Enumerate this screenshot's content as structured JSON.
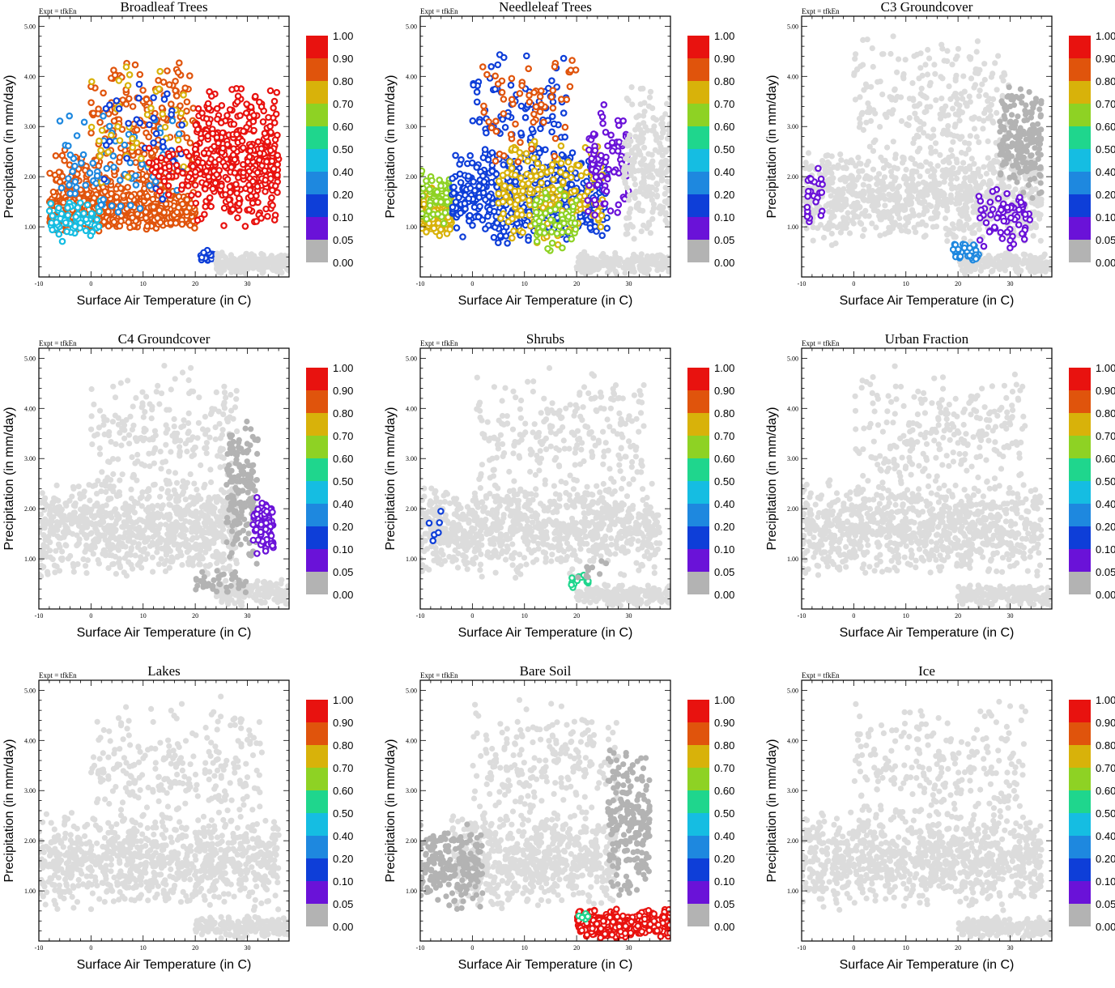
{
  "figure": {
    "expt_label": "Expt = tfkEn",
    "xlabel": "Surface Air Temperature (in C)",
    "ylabel": "Precipitation (in mm/day)",
    "xlim": [
      -10,
      38
    ],
    "ylim": [
      0,
      5.2
    ],
    "x_ticks": [
      "-10",
      "0",
      "10",
      "20",
      "30"
    ],
    "y_ticks": [
      "1.00",
      "2.00",
      "3.00",
      "4.00",
      "5.00"
    ],
    "colorbar": {
      "labels": [
        "1.00",
        "0.90",
        "0.80",
        "0.70",
        "0.60",
        "0.50",
        "0.40",
        "0.20",
        "0.10",
        "0.05",
        "0.00"
      ],
      "colors": [
        "#e8120f",
        "#e0540c",
        "#d8b20a",
        "#8ed224",
        "#1fd68d",
        "#15bde2",
        "#1e88df",
        "#0e3ed8",
        "#6a12d8",
        "#b3b3b3"
      ]
    },
    "background_point_color": "#dcdcdc"
  },
  "chart_data": [
    {
      "type": "scatter",
      "title": "Broadleaf Trees",
      "xlim": [
        -10,
        38
      ],
      "ylim": [
        0,
        5.2
      ],
      "clusters": [
        {
          "x_range": [
            -8,
            20
          ],
          "y_range": [
            0.9,
            1.7
          ],
          "color": "#e0540c",
          "count": 520
        },
        {
          "x_range": [
            -8,
            20
          ],
          "y_range": [
            1.0,
            2.6
          ],
          "color": "#e0540c",
          "count": 240
        },
        {
          "x_range": [
            0,
            20
          ],
          "y_range": [
            2.0,
            4.5
          ],
          "color": "#e0540c",
          "count": 150
        },
        {
          "x_range": [
            -8,
            2
          ],
          "y_range": [
            0.7,
            1.6
          ],
          "color": "#15bde2",
          "count": 70
        },
        {
          "x_range": [
            -6,
            17
          ],
          "y_range": [
            1.0,
            3.4
          ],
          "color": "#1e88df",
          "count": 80
        },
        {
          "x_range": [
            0,
            18
          ],
          "y_range": [
            1.2,
            4.7
          ],
          "color": "#d8b20a",
          "count": 40
        },
        {
          "x_range": [
            2,
            18
          ],
          "y_range": [
            1.3,
            4.2
          ],
          "color": "#0e3ed8",
          "count": 35
        },
        {
          "x_range": [
            20,
            36
          ],
          "y_range": [
            0.9,
            3.9
          ],
          "color": "#e8120f",
          "count": 420
        },
        {
          "x_range": [
            11,
            20
          ],
          "y_range": [
            1.5,
            2.8
          ],
          "color": "#e8120f",
          "count": 50
        },
        {
          "x_range": [
            21,
            24
          ],
          "y_range": [
            0.3,
            0.6
          ],
          "color": "#0e3ed8",
          "count": 25
        },
        {
          "x_range": [
            24,
            38
          ],
          "y_range": [
            0.05,
            0.5
          ],
          "color": "#dcdcdc",
          "count": 220
        }
      ]
    },
    {
      "type": "scatter",
      "title": "Needleleaf Trees",
      "xlim": [
        -10,
        38
      ],
      "ylim": [
        0,
        5.2
      ],
      "clusters": [
        {
          "x_range": [
            -10,
            -4
          ],
          "y_range": [
            0.8,
            1.8
          ],
          "color": "#d8b20a",
          "count": 240
        },
        {
          "x_range": [
            -10,
            -4
          ],
          "y_range": [
            1.0,
            2.2
          ],
          "color": "#8ed224",
          "count": 60
        },
        {
          "x_range": [
            -4,
            26
          ],
          "y_range": [
            0.6,
            2.6
          ],
          "color": "#0e3ed8",
          "count": 480
        },
        {
          "x_range": [
            0,
            18
          ],
          "y_range": [
            2.0,
            4.6
          ],
          "color": "#0e3ed8",
          "count": 90
        },
        {
          "x_range": [
            5,
            25
          ],
          "y_range": [
            0.6,
            2.8
          ],
          "color": "#d8b20a",
          "count": 200
        },
        {
          "x_range": [
            12,
            20
          ],
          "y_range": [
            0.5,
            1.8
          ],
          "color": "#8ed224",
          "count": 60
        },
        {
          "x_range": [
            2,
            20
          ],
          "y_range": [
            2.0,
            4.6
          ],
          "color": "#e0540c",
          "count": 60
        },
        {
          "x_range": [
            22,
            30
          ],
          "y_range": [
            1.0,
            3.5
          ],
          "color": "#6a12d8",
          "count": 90
        },
        {
          "x_range": [
            29,
            38
          ],
          "y_range": [
            0.5,
            3.9
          ],
          "color": "#dcdcdc",
          "count": 220
        },
        {
          "x_range": [
            20,
            38
          ],
          "y_range": [
            0.05,
            0.5
          ],
          "color": "#dcdcdc",
          "count": 220
        }
      ]
    },
    {
      "type": "scatter",
      "title": "C3 Groundcover",
      "xlim": [
        -10,
        38
      ],
      "ylim": [
        0,
        5.2
      ],
      "clusters": [
        {
          "x_range": [
            -10,
            36
          ],
          "y_range": [
            0.6,
            2.6
          ],
          "color": "#dcdcdc",
          "count": 900
        },
        {
          "x_range": [
            0,
            30
          ],
          "y_range": [
            2.0,
            4.9
          ],
          "color": "#dcdcdc",
          "count": 260
        },
        {
          "x_range": [
            28,
            36
          ],
          "y_range": [
            1.5,
            3.9
          ],
          "color": "#b3b3b3",
          "count": 200
        },
        {
          "x_range": [
            20,
            38
          ],
          "y_range": [
            0.05,
            0.5
          ],
          "color": "#dcdcdc",
          "count": 200
        },
        {
          "x_range": [
            -9,
            -6
          ],
          "y_range": [
            1.0,
            2.4
          ],
          "color": "#6a12d8",
          "count": 25
        },
        {
          "x_range": [
            24,
            34
          ],
          "y_range": [
            0.5,
            1.8
          ],
          "color": "#6a12d8",
          "count": 70
        },
        {
          "x_range": [
            19,
            24
          ],
          "y_range": [
            0.3,
            0.7
          ],
          "color": "#1e88df",
          "count": 30
        }
      ]
    },
    {
      "type": "scatter",
      "title": "C4 Groundcover",
      "xlim": [
        -10,
        38
      ],
      "ylim": [
        0,
        5.2
      ],
      "clusters": [
        {
          "x_range": [
            -10,
            28
          ],
          "y_range": [
            0.6,
            2.6
          ],
          "color": "#dcdcdc",
          "count": 850
        },
        {
          "x_range": [
            0,
            28
          ],
          "y_range": [
            2.0,
            4.9
          ],
          "color": "#dcdcdc",
          "count": 240
        },
        {
          "x_range": [
            24,
            38
          ],
          "y_range": [
            0.05,
            0.6
          ],
          "color": "#dcdcdc",
          "count": 180
        },
        {
          "x_range": [
            26,
            32
          ],
          "y_range": [
            0.8,
            3.9
          ],
          "color": "#b3b3b3",
          "count": 180
        },
        {
          "x_range": [
            20,
            30
          ],
          "y_range": [
            0.3,
            0.8
          ],
          "color": "#b3b3b3",
          "count": 40
        },
        {
          "x_range": [
            31,
            35
          ],
          "y_range": [
            1.0,
            2.3
          ],
          "color": "#6a12d8",
          "count": 70
        }
      ]
    },
    {
      "type": "scatter",
      "title": "Shrubs",
      "xlim": [
        -10,
        38
      ],
      "ylim": [
        0,
        5.2
      ],
      "clusters": [
        {
          "x_range": [
            -10,
            36
          ],
          "y_range": [
            0.6,
            2.6
          ],
          "color": "#dcdcdc",
          "count": 900
        },
        {
          "x_range": [
            0,
            33
          ],
          "y_range": [
            2.0,
            4.9
          ],
          "color": "#dcdcdc",
          "count": 260
        },
        {
          "x_range": [
            20,
            38
          ],
          "y_range": [
            0.05,
            0.5
          ],
          "color": "#dcdcdc",
          "count": 200
        },
        {
          "x_range": [
            -9,
            -6
          ],
          "y_range": [
            0.9,
            2.4
          ],
          "color": "#0e3ed8",
          "count": 6
        },
        {
          "x_range": [
            19,
            23
          ],
          "y_range": [
            0.4,
            0.7
          ],
          "color": "#1fd68d",
          "count": 14
        },
        {
          "x_range": [
            20,
            26
          ],
          "y_range": [
            0.5,
            1.1
          ],
          "color": "#b3b3b3",
          "count": 10
        }
      ]
    },
    {
      "type": "scatter",
      "title": "Urban Fraction",
      "xlim": [
        -10,
        38
      ],
      "ylim": [
        0,
        5.2
      ],
      "clusters": [
        {
          "x_range": [
            -10,
            36
          ],
          "y_range": [
            0.6,
            2.6
          ],
          "color": "#dcdcdc",
          "count": 900
        },
        {
          "x_range": [
            0,
            33
          ],
          "y_range": [
            2.0,
            4.9
          ],
          "color": "#dcdcdc",
          "count": 260
        },
        {
          "x_range": [
            20,
            38
          ],
          "y_range": [
            0.05,
            0.5
          ],
          "color": "#dcdcdc",
          "count": 200
        }
      ]
    },
    {
      "type": "scatter",
      "title": "Lakes",
      "xlim": [
        -10,
        38
      ],
      "ylim": [
        0,
        5.2
      ],
      "clusters": [
        {
          "x_range": [
            -10,
            36
          ],
          "y_range": [
            0.6,
            2.6
          ],
          "color": "#dcdcdc",
          "count": 900
        },
        {
          "x_range": [
            0,
            33
          ],
          "y_range": [
            2.0,
            4.9
          ],
          "color": "#dcdcdc",
          "count": 260
        },
        {
          "x_range": [
            20,
            38
          ],
          "y_range": [
            0.05,
            0.5
          ],
          "color": "#dcdcdc",
          "count": 200
        }
      ]
    },
    {
      "type": "scatter",
      "title": "Bare Soil",
      "xlim": [
        -10,
        38
      ],
      "ylim": [
        0,
        5.2
      ],
      "clusters": [
        {
          "x_range": [
            -4,
            28
          ],
          "y_range": [
            0.6,
            2.6
          ],
          "color": "#dcdcdc",
          "count": 650
        },
        {
          "x_range": [
            0,
            28
          ],
          "y_range": [
            2.0,
            4.9
          ],
          "color": "#dcdcdc",
          "count": 240
        },
        {
          "x_range": [
            -10,
            2
          ],
          "y_range": [
            0.6,
            2.4
          ],
          "color": "#b3b3b3",
          "count": 200
        },
        {
          "x_range": [
            26,
            34
          ],
          "y_range": [
            0.8,
            3.9
          ],
          "color": "#b3b3b3",
          "count": 220
        },
        {
          "x_range": [
            20,
            38
          ],
          "y_range": [
            0.05,
            0.65
          ],
          "color": "#e8120f",
          "count": 340
        },
        {
          "x_range": [
            19,
            23
          ],
          "y_range": [
            0.4,
            0.6
          ],
          "color": "#1fd68d",
          "count": 6
        }
      ]
    },
    {
      "type": "scatter",
      "title": "Ice",
      "xlim": [
        -10,
        38
      ],
      "ylim": [
        0,
        5.2
      ],
      "clusters": [
        {
          "x_range": [
            -10,
            36
          ],
          "y_range": [
            0.6,
            2.6
          ],
          "color": "#dcdcdc",
          "count": 900
        },
        {
          "x_range": [
            0,
            33
          ],
          "y_range": [
            2.0,
            4.9
          ],
          "color": "#dcdcdc",
          "count": 260
        },
        {
          "x_range": [
            20,
            38
          ],
          "y_range": [
            0.05,
            0.5
          ],
          "color": "#dcdcdc",
          "count": 200
        }
      ]
    }
  ]
}
